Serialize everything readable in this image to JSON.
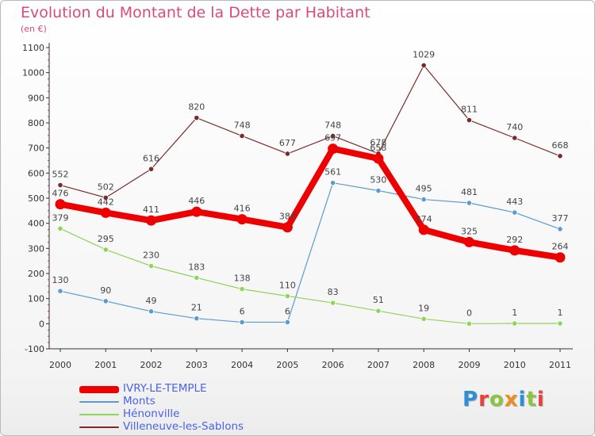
{
  "title": "Evolution du Montant de la Dette par Habitant",
  "unit": "(en €)",
  "logo": "Proxiti",
  "logo_colors": [
    "#2d8fd8",
    "#e8413c",
    "#8bc43f",
    "#f08c1e",
    "#2d8fd8",
    "#8bc43f",
    "#e8413c"
  ],
  "chart_data": {
    "type": "line",
    "title": "Evolution du Montant de la Dette par Habitant",
    "ylabel": "(en €)",
    "x": [
      "2000",
      "2001",
      "2002",
      "2003",
      "2004",
      "2005",
      "2006",
      "2007",
      "2008",
      "2009",
      "2010",
      "2011"
    ],
    "ylim": [
      -100,
      1100
    ],
    "yticks": [
      "-100",
      "0",
      "100",
      "200",
      "300",
      "400",
      "500",
      "600",
      "700",
      "800",
      "900",
      "1000",
      "1100"
    ],
    "grid": false,
    "legend": "bottom-left",
    "series": [
      {
        "name": "IVRY-LE-TEMPLE",
        "color": "#ee0000",
        "emphasis": "thick",
        "values": [
          476,
          442,
          411,
          446,
          416,
          384,
          697,
          658,
          374,
          325,
          292,
          264
        ],
        "labels": [
          "476",
          "442",
          "411",
          "446",
          "416",
          "384",
          "697",
          "658",
          "374",
          "325",
          "292",
          "264"
        ]
      },
      {
        "name": "Monts",
        "color": "#5b9bd0",
        "values": [
          130,
          90,
          49,
          21,
          6,
          6,
          561,
          530,
          495,
          481,
          443,
          377
        ],
        "labels": [
          "130",
          "90",
          "49",
          "21",
          "6",
          "6",
          "561",
          "530",
          "495",
          "481",
          "443",
          "377"
        ]
      },
      {
        "name": "Hénonville",
        "color": "#8fd45b",
        "values": [
          379,
          295,
          230,
          183,
          138,
          110,
          83,
          51,
          19,
          0,
          1,
          1
        ],
        "labels": [
          "379",
          "295",
          "230",
          "183",
          "138",
          "110",
          "83",
          "51",
          "19",
          "0",
          "1",
          "1"
        ]
      },
      {
        "name": "Villeneuve-les-Sablons",
        "color": "#7a2a2a",
        "values": [
          552,
          502,
          616,
          820,
          748,
          677,
          748,
          678,
          1029,
          811,
          740,
          668
        ],
        "labels": [
          "552",
          "502",
          "616",
          "820",
          "748",
          "677",
          "748",
          "678",
          "1029",
          "811",
          "740",
          "668"
        ]
      }
    ]
  }
}
